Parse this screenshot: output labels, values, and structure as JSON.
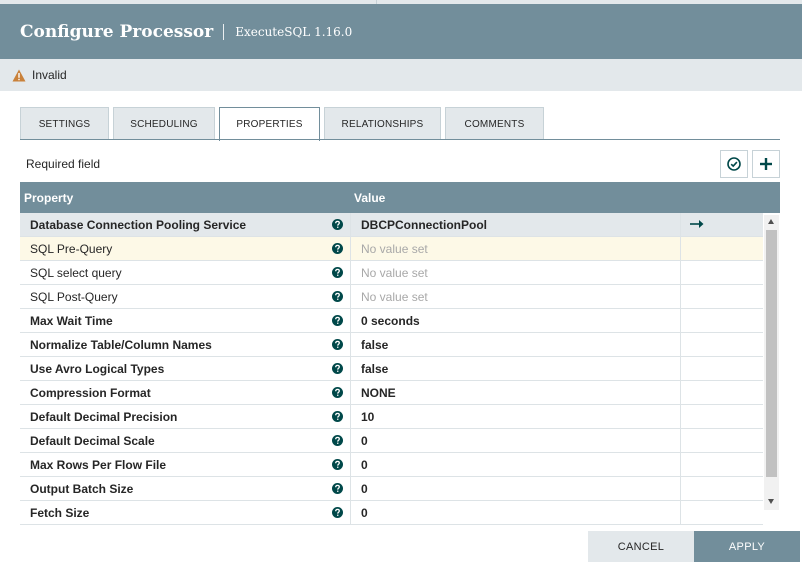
{
  "header": {
    "title": "Configure Processor",
    "subtitle": "ExecuteSQL 1.16.0"
  },
  "status": {
    "text": "Invalid",
    "icon": "warning-icon",
    "color": "#c9813a"
  },
  "tabs": [
    {
      "label": "SETTINGS",
      "active": false
    },
    {
      "label": "SCHEDULING",
      "active": false
    },
    {
      "label": "PROPERTIES",
      "active": true
    },
    {
      "label": "RELATIONSHIPS",
      "active": false
    },
    {
      "label": "COMMENTS",
      "active": false
    }
  ],
  "toolbar": {
    "required_label": "Required field",
    "verify_icon": "check-circle-icon",
    "add_icon": "plus-icon"
  },
  "table": {
    "headers": {
      "property": "Property",
      "value": "Value"
    },
    "empty_value": "No value set",
    "rows": [
      {
        "name": "Database Connection Pooling Service",
        "value": "DBCPConnectionPool",
        "required": true,
        "is_set": true,
        "goto": true
      },
      {
        "name": "SQL Pre-Query",
        "value": "No value set",
        "required": false,
        "is_set": false
      },
      {
        "name": "SQL select query",
        "value": "No value set",
        "required": false,
        "is_set": false
      },
      {
        "name": "SQL Post-Query",
        "value": "No value set",
        "required": false,
        "is_set": false
      },
      {
        "name": "Max Wait Time",
        "value": "0 seconds",
        "required": true,
        "is_set": true
      },
      {
        "name": "Normalize Table/Column Names",
        "value": "false",
        "required": true,
        "is_set": true
      },
      {
        "name": "Use Avro Logical Types",
        "value": "false",
        "required": true,
        "is_set": true
      },
      {
        "name": "Compression Format",
        "value": "NONE",
        "required": true,
        "is_set": true
      },
      {
        "name": "Default Decimal Precision",
        "value": "10",
        "required": true,
        "is_set": true
      },
      {
        "name": "Default Decimal Scale",
        "value": "0",
        "required": true,
        "is_set": true
      },
      {
        "name": "Max Rows Per Flow File",
        "value": "0",
        "required": true,
        "is_set": true
      },
      {
        "name": "Output Batch Size",
        "value": "0",
        "required": true,
        "is_set": true
      },
      {
        "name": "Fetch Size",
        "value": "0",
        "required": true,
        "is_set": true
      }
    ]
  },
  "buttons": {
    "cancel": "CANCEL",
    "apply": "APPLY"
  },
  "colors": {
    "header_bg": "#728e9b",
    "status_bg": "#e3e8eb",
    "hover_row": "#fdf9e7",
    "dark_teal": "#004849"
  }
}
